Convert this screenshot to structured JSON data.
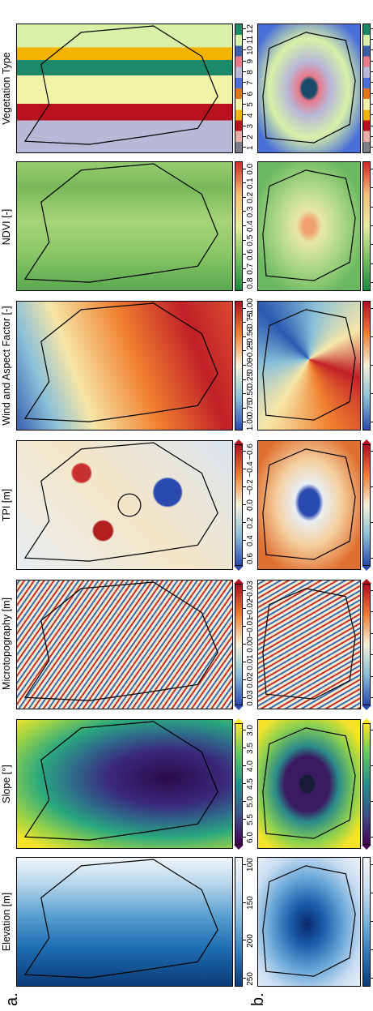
{
  "panel_labels": {
    "a": "a.",
    "b": "b."
  },
  "titles": [
    "Elevation [m]",
    "Slope [°]",
    "Microtopography [m]",
    "TPI [m]",
    "Wind and Aspect Factor [-]",
    "NDVI [-]",
    "Vegetation Type"
  ],
  "row_a": {
    "elevation": {
      "ticks": [
        "250",
        "200",
        "150",
        "100"
      ],
      "range": [
        40,
        280
      ]
    },
    "slope": {
      "ticks": [
        "6.0",
        "5.5",
        "5.0",
        "4.5",
        "4.0",
        "3.5",
        "3.0"
      ]
    },
    "micro": {
      "ticks": [
        "0.03",
        "0.02",
        "0.01",
        "0.00",
        "−0.01",
        "−0.02",
        "−0.03"
      ]
    },
    "tpi": {
      "ticks": [
        "0.6",
        "0.4",
        "0.2",
        "0.0",
        "−0.2",
        "−0.4",
        "−0.6"
      ]
    },
    "wind": {
      "ticks": [
        "1.00",
        "0.75",
        "0.50",
        "0.25",
        "0.00",
        "−0.25",
        "−0.50",
        "−0.75",
        "−1.00"
      ]
    },
    "ndvi": {
      "ticks": [
        "0.8",
        "0.7",
        "0.6",
        "0.5",
        "0.4",
        "0.3",
        "0.2",
        "0.1",
        "0.0"
      ]
    },
    "veg": {
      "ticks": [
        "1",
        "2",
        "3",
        "4",
        "5",
        "6",
        "7",
        "8",
        "9",
        "10",
        "11",
        "12"
      ]
    }
  },
  "row_b": {
    "elevation": {
      "ticks": [
        "100",
        "80",
        "60",
        "40",
        "20"
      ]
    },
    "slope": {
      "ticks": [
        "5",
        "4",
        "3",
        "2"
      ]
    },
    "micro": {
      "ticks": [
        "0.03",
        "0.02",
        "0.01",
        "0.00",
        "−0.01",
        "−0.02"
      ]
    },
    "tpi": {
      "ticks": [
        "1.0",
        "0.5",
        "0.0",
        "−0.5"
      ]
    },
    "wind": {
      "ticks": [
        "1.0",
        "0.5",
        "0.0",
        "−0.5",
        "−1.0"
      ]
    },
    "ndvi": {
      "ticks": [
        "0.5",
        "0.4",
        "0.3",
        "0.2",
        "0.1",
        "0.0",
        "−0.1"
      ]
    },
    "veg": {
      "ticks": [
        "1",
        "2",
        "3",
        "4",
        "5",
        "6",
        "7",
        "8",
        "9",
        "10",
        "11",
        "12"
      ]
    }
  },
  "colors": {
    "veg": [
      "#7b7f8c",
      "#e8b0a8",
      "#b8121f",
      "#f2b400",
      "#f2f2a8",
      "#e07a18",
      "#4a6fd8",
      "#b8b8d8",
      "#e8788a",
      "#3a5fa8",
      "#d8f0a8",
      "#1a8a6a"
    ]
  }
}
